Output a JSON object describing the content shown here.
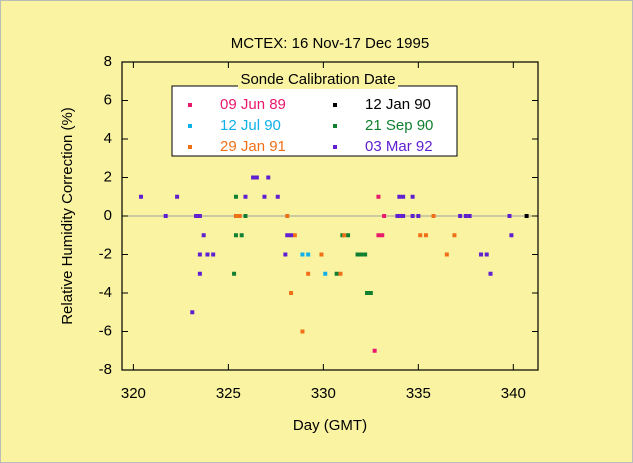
{
  "chart_data": {
    "type": "scatter",
    "title": "MCTEX:   16 Nov-17 Dec 1995",
    "x_label": "Day (GMT)",
    "y_label": "Relative Humidity Correction (%)",
    "legend_title": "Sonde  Calibration  Date",
    "xlim": [
      319.4,
      341.3
    ],
    "ylim": [
      -8,
      8
    ],
    "xticks": [
      320,
      325,
      330,
      335,
      340
    ],
    "yticks": [
      8,
      6,
      4,
      2,
      0,
      -2,
      -4,
      -6,
      -8
    ],
    "reference_line": 0,
    "series": [
      {
        "name": "09 Jun 89",
        "color": "#e8186c",
        "x": [
          332.9,
          333.2,
          332.9,
          333.1,
          332.7
        ],
        "values": [
          1,
          0,
          -1,
          -1,
          -7
        ]
      },
      {
        "name": "12 Jan 90",
        "color": "#000000",
        "x": [
          340.7
        ],
        "values": [
          0
        ]
      },
      {
        "name": "12 Jul 90",
        "color": "#10b0e8",
        "x": [
          328.9,
          329.2,
          330.1
        ],
        "values": [
          -2,
          -2,
          -3
        ]
      },
      {
        "name": "21 Sep 90",
        "color": "#108030",
        "x": [
          325.3,
          325.4,
          325.4,
          325.7,
          325.9,
          330.7,
          331.0,
          331.3,
          331.8,
          332.0,
          332.2,
          332.3,
          332.5
        ],
        "values": [
          -3,
          1,
          -1,
          -1,
          0,
          -3,
          -1,
          -1,
          -2,
          -2,
          -2,
          -4,
          -4
        ]
      },
      {
        "name": "29 Jan 91",
        "color": "#f07018",
        "x": [
          325.4,
          325.6,
          328.1,
          328.3,
          328.5,
          328.9,
          329.2,
          329.9,
          330.9,
          331.1,
          335.1,
          335.4,
          335.8,
          336.5,
          336.9
        ],
        "values": [
          0,
          0,
          0,
          -4,
          -1,
          -6,
          -3,
          -2,
          -3,
          -1,
          -1,
          -1,
          0,
          -2,
          -1
        ]
      },
      {
        "name": "03 Mar 92",
        "color": "#6020d0",
        "x": [
          320.4,
          321.7,
          322.3,
          323.1,
          323.3,
          323.5,
          323.5,
          323.7,
          323.5,
          323.9,
          324.2,
          325.9,
          326.3,
          326.5,
          326.9,
          327.1,
          327.6,
          328.0,
          328.1,
          328.3,
          333.9,
          334.0,
          334.2,
          334.7,
          334.0,
          334.2,
          334.7,
          335.0,
          337.2,
          337.5,
          337.7,
          338.3,
          338.6,
          338.8,
          339.8,
          339.9
        ],
        "values": [
          1,
          0,
          1,
          -5,
          0,
          0,
          -3,
          -1,
          -2,
          -2,
          -2,
          1,
          2,
          2,
          1,
          2,
          1,
          -2,
          -1,
          -1,
          0,
          1,
          1,
          1,
          0,
          0,
          0,
          0,
          0,
          0,
          0,
          -2,
          -2,
          -3,
          0,
          -1
        ]
      }
    ]
  }
}
